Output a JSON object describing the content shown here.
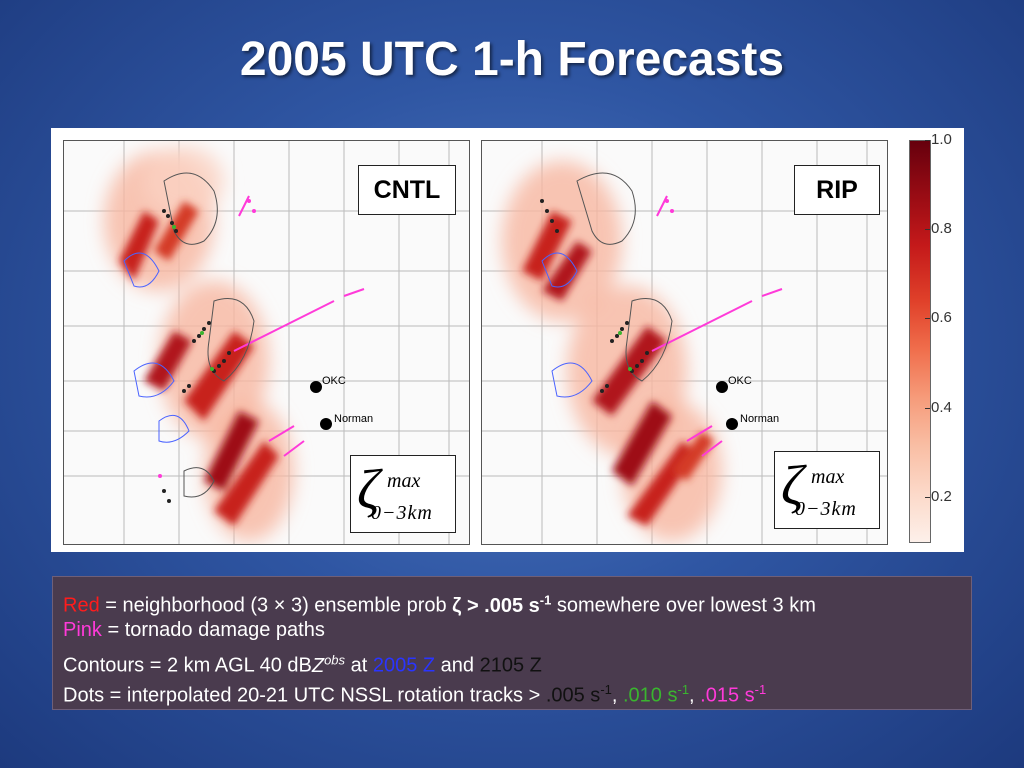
{
  "slide": {
    "title": "2005 UTC 1-h Forecasts"
  },
  "panels": [
    {
      "label": "CNTL",
      "okc": "OKC",
      "norman": "Norman",
      "zeta": {
        "symbol": "ζ",
        "sup": "max",
        "sub": "0−3km"
      }
    },
    {
      "label": "RIP",
      "okc": "OKC",
      "norman": "Norman",
      "zeta": {
        "symbol": "ζ",
        "sup": "max",
        "sub": "0−3km"
      }
    }
  ],
  "colorbar": {
    "ticks": [
      "1.0",
      "0.8",
      "0.6",
      "0.4",
      "0.2"
    ],
    "colors": {
      "high": "#66000d",
      "mid": "#e0412a",
      "low": "#fdf0ea"
    }
  },
  "caption": {
    "line1": {
      "red_word": "Red",
      "text_a": " = neighborhood (3 × 3) ensemble prob ",
      "bold_a": "ζ > .005 s",
      "bold_sup": "-1",
      "text_b": " somewhere over lowest 3 km"
    },
    "line2": {
      "pink_word": "Pink",
      "text": " = tornado damage paths"
    },
    "line3": {
      "text_a": "Contours = 2 km AGL 40 dB",
      "z": "Z",
      "z_sup": "obs",
      "text_b": " at ",
      "blue_time": "2005 Z",
      "text_c": " and ",
      "black_time": "2105 Z"
    },
    "line4": {
      "text_a": "Dots = interpolated 20-21 UTC NSSL rotation tracks > ",
      "v1": ".005 s",
      "v1_sup": "-1",
      "sep1": ", ",
      "v2": ".010 s",
      "v2_sup": "-1",
      "sep2": ", ",
      "v3": ".015 s",
      "v3_sup": "-1"
    },
    "colors": {
      "red": "#ff1c1c",
      "pink": "#ff3ad9",
      "blue": "#2a34ff",
      "green": "#3ab52f"
    }
  }
}
